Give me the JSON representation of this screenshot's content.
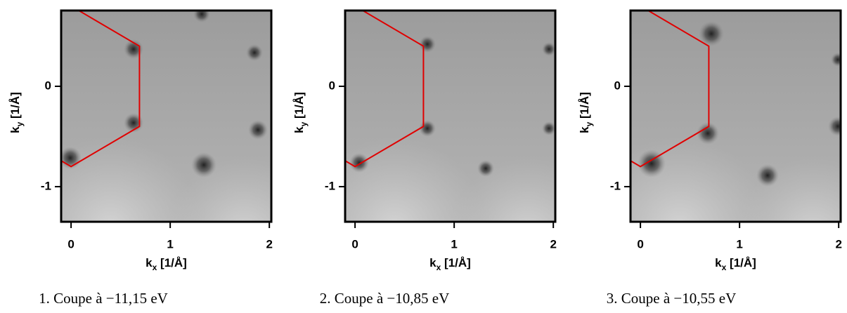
{
  "chart_data": [
    {
      "type": "line",
      "xlabel": "k",
      "xlabel_sub": "x",
      "xlabel_rest": " [1/Å]",
      "ylabel": "k",
      "ylabel_sub": "y",
      "ylabel_rest": " [1/Å]",
      "caption": "1. Coupe à −11,15 eV",
      "x": [
        0,
        0.69,
        0.69,
        0,
        -0.69
      ],
      "series": [
        {
          "color": "#e00000",
          "values": [
            0.8,
            0.4,
            -0.4,
            -0.8,
            -0.4
          ]
        }
      ],
      "xlim": [
        -0.1,
        2.02
      ],
      "ylim": [
        -1.35,
        0.755
      ],
      "xticks": [
        0,
        1,
        2
      ],
      "yticks": [
        -1,
        0
      ]
    },
    {
      "type": "line",
      "xlabel": "k",
      "xlabel_sub": "x",
      "xlabel_rest": " [1/Å]",
      "ylabel": "k",
      "ylabel_sub": "y",
      "ylabel_rest": " [1/Å]",
      "caption": "2. Coupe à −10,85 eV",
      "x": [
        0,
        0.69,
        0.69,
        0,
        -0.69
      ],
      "series": [
        {
          "color": "#e00000",
          "values": [
            0.8,
            0.4,
            -0.4,
            -0.8,
            -0.4
          ]
        }
      ],
      "xlim": [
        -0.1,
        2.02
      ],
      "ylim": [
        -1.35,
        0.755
      ],
      "xticks": [
        0,
        1,
        2
      ],
      "yticks": [
        -1,
        0
      ]
    },
    {
      "type": "line",
      "xlabel": "k",
      "xlabel_sub": "x",
      "xlabel_rest": " [1/Å]",
      "ylabel": "k",
      "ylabel_sub": "y",
      "ylabel_rest": " [1/Å]",
      "caption": "3. Coupe à −10,55 eV",
      "x": [
        0,
        0.69,
        0.69,
        0,
        -0.69
      ],
      "series": [
        {
          "color": "#e00000",
          "values": [
            0.8,
            0.4,
            -0.4,
            -0.8,
            -0.4
          ]
        }
      ],
      "xlim": [
        -0.1,
        2.02
      ],
      "ylim": [
        -1.35,
        0.755
      ],
      "xticks": [
        0,
        1,
        2
      ],
      "yticks": [
        -1,
        0
      ]
    }
  ]
}
